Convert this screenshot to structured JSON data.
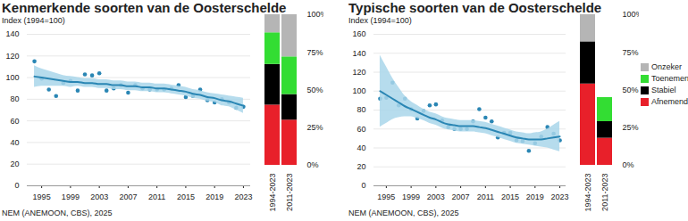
{
  "chart_data": [
    {
      "type": "line",
      "title": "Kenmerkende soorten van de Oosterschelde",
      "subtitle": "Index (1994=100)",
      "caption": "NEM (ANEMOON, CBS), 2025",
      "x": [
        1994,
        1995,
        1996,
        1997,
        1998,
        1999,
        2000,
        2001,
        2002,
        2003,
        2004,
        2005,
        2006,
        2007,
        2008,
        2009,
        2010,
        2011,
        2012,
        2013,
        2014,
        2015,
        2016,
        2017,
        2018,
        2019,
        2020,
        2021,
        2022,
        2023
      ],
      "series": [
        {
          "type": "scatter",
          "marker": "circle",
          "color": "#2a86b4",
          "values": [
            115,
            99,
            89,
            83,
            95,
            97,
            88,
            103,
            102,
            104,
            88,
            90,
            93,
            86,
            93,
            90,
            89,
            89,
            89,
            90,
            93,
            82,
            83,
            89,
            79,
            77,
            80,
            77,
            72,
            73
          ]
        },
        {
          "type": "line",
          "color": "#2a86b4",
          "values": [
            101,
            100,
            99,
            98,
            97,
            96,
            96,
            95,
            95,
            94,
            94,
            93,
            93,
            92,
            92,
            91,
            91,
            90,
            90,
            89,
            88,
            87,
            85,
            84,
            82,
            81,
            79,
            78,
            76,
            74
          ],
          "lower": [
            91,
            92,
            92,
            92,
            92,
            91,
            92,
            91,
            91,
            90,
            90,
            89,
            89,
            88,
            88,
            87,
            87,
            86,
            86,
            85,
            84,
            83,
            81,
            80,
            78,
            77,
            74,
            73,
            70,
            67
          ],
          "upper": [
            111,
            108,
            106,
            104,
            102,
            101,
            100,
            99,
            99,
            98,
            98,
            97,
            97,
            96,
            96,
            95,
            95,
            94,
            94,
            93,
            92,
            91,
            89,
            88,
            86,
            85,
            84,
            83,
            82,
            81
          ]
        }
      ],
      "xlim": [
        1993,
        2024
      ],
      "xticks": [
        1995,
        1999,
        2003,
        2007,
        2011,
        2015,
        2019,
        2023
      ],
      "ylim": [
        0,
        140
      ],
      "yticks": [
        0,
        20,
        40,
        60,
        80,
        100,
        120,
        140
      ],
      "grid": true
    },
    {
      "type": "bar",
      "stacked": true,
      "categories": [
        "1994-2023",
        "2011-2023"
      ],
      "series": [
        {
          "name": "Afnemend",
          "color": "#e8202a",
          "values": [
            40,
            30
          ]
        },
        {
          "name": "Stabiel",
          "color": "#000000",
          "values": [
            27,
            17
          ]
        },
        {
          "name": "Toenemend",
          "color": "#33dd33",
          "values": [
            21,
            25
          ]
        },
        {
          "name": "Onzeker",
          "color": "#b5b5b5",
          "values": [
            12,
            28
          ]
        }
      ],
      "ylim": [
        0,
        100
      ],
      "yticks": [
        {
          "value": 0,
          "label": "0%"
        },
        {
          "value": 25,
          "label": "25%"
        },
        {
          "value": 50,
          "label": "50%"
        },
        {
          "value": 75,
          "label": "75%"
        },
        {
          "value": 100,
          "label": "100%"
        }
      ]
    },
    {
      "type": "line",
      "title": "Typische soorten van de Oosterschelde",
      "subtitle": "Index (1994=100)",
      "caption": "NEM (ANEMOON, CBS), 2025",
      "x": [
        1994,
        1995,
        1996,
        1997,
        1998,
        1999,
        2000,
        2001,
        2002,
        2003,
        2004,
        2005,
        2006,
        2007,
        2008,
        2009,
        2010,
        2011,
        2012,
        2013,
        2014,
        2015,
        2016,
        2017,
        2018,
        2019,
        2020,
        2021,
        2022,
        2023
      ],
      "series": [
        {
          "type": "scatter",
          "marker": "circle",
          "color": "#2a86b4",
          "values": [
            92,
            93,
            109,
            85,
            92,
            81,
            71,
            79,
            85,
            86,
            69,
            62,
            60,
            60,
            60,
            68,
            81,
            72,
            68,
            51,
            56,
            56,
            48,
            47,
            37,
            45,
            52,
            62,
            55,
            48
          ]
        },
        {
          "type": "line",
          "color": "#2a86b4",
          "values": [
            100,
            96,
            92,
            88,
            84,
            81,
            78,
            75,
            72,
            70,
            67,
            65,
            64,
            63,
            63,
            63,
            62,
            61,
            59,
            57,
            55,
            53,
            51,
            50,
            49,
            49,
            49,
            50,
            51,
            52
          ],
          "lower": [
            62,
            66,
            70,
            72,
            73,
            73,
            71,
            69,
            66,
            64,
            61,
            59,
            58,
            57,
            57,
            57,
            56,
            55,
            53,
            51,
            49,
            47,
            45,
            44,
            43,
            42,
            41,
            40,
            38,
            36
          ],
          "upper": [
            138,
            126,
            114,
            104,
            95,
            89,
            85,
            81,
            78,
            76,
            73,
            71,
            70,
            69,
            69,
            69,
            68,
            67,
            65,
            63,
            61,
            59,
            57,
            56,
            55,
            56,
            57,
            60,
            64,
            68
          ]
        }
      ],
      "xlim": [
        1993,
        2024
      ],
      "xticks": [
        1995,
        1999,
        2003,
        2007,
        2011,
        2015,
        2019,
        2023
      ],
      "ylim": [
        0,
        160
      ],
      "yticks": [
        0,
        20,
        40,
        60,
        80,
        100,
        120,
        140,
        160
      ],
      "grid": true
    },
    {
      "type": "bar",
      "stacked": true,
      "legend": "right",
      "categories": [
        "1994-2023",
        "2011-2023"
      ],
      "series": [
        {
          "name": "Afnemend",
          "color": "#e8202a",
          "values": [
            54,
            18
          ]
        },
        {
          "name": "Stabiel",
          "color": "#000000",
          "values": [
            28,
            11
          ]
        },
        {
          "name": "Toenemend",
          "color": "#33dd33",
          "values": [
            0,
            16
          ]
        },
        {
          "name": "Onzeker",
          "color": "#b5b5b5",
          "values": [
            18,
            0
          ]
        }
      ],
      "ylim": [
        0,
        100
      ],
      "yticks": [
        {
          "value": 0,
          "label": "0%"
        },
        {
          "value": 25,
          "label": "25%"
        },
        {
          "value": 50,
          "label": "50%"
        },
        {
          "value": 75,
          "label": "75%"
        },
        {
          "value": 100,
          "label": "100%"
        }
      ],
      "tick_labels": true
    }
  ]
}
